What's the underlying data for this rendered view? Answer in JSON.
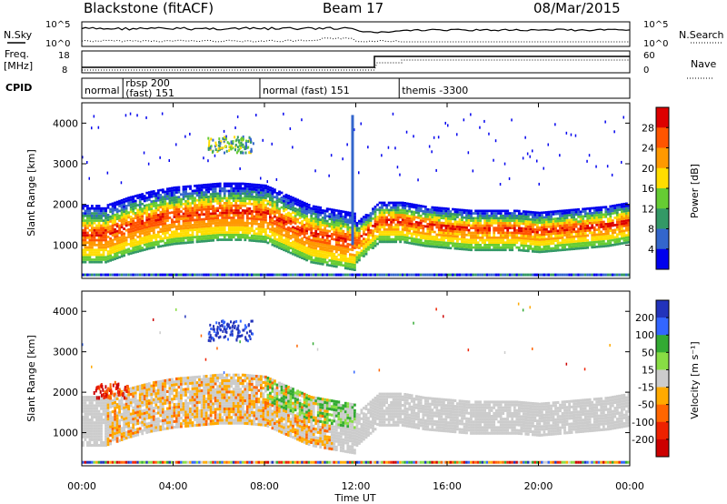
{
  "header": {
    "station": "Blackstone (fitACF)",
    "beam": "Beam 17",
    "date": "08/Mar/2015"
  },
  "noise_panel": {
    "left_label": "N.Sky",
    "right_label": "N.Search",
    "left_ticks": [
      "10^5",
      "10^0"
    ],
    "right_ticks": [
      "10^5",
      "10^0"
    ]
  },
  "freq_panel": {
    "left_label_1": "Freq.",
    "left_label_2": "[MHz]",
    "right_label": "Nave",
    "left_ticks": [
      "18",
      "8"
    ],
    "right_ticks": [
      "60",
      "0"
    ]
  },
  "cpid_panel": {
    "label": "CPID",
    "segments": [
      {
        "start_h": 0.0,
        "end_h": 1.8,
        "lines": [
          "normal"
        ]
      },
      {
        "start_h": 1.8,
        "end_h": 7.8,
        "lines": [
          "rbsp 200",
          "(fast) 151"
        ]
      },
      {
        "start_h": 7.8,
        "end_h": 13.9,
        "lines": [
          "normal (fast) 151"
        ]
      },
      {
        "start_h": 13.9,
        "end_h": 24.0,
        "lines": [
          "themis -3300"
        ]
      }
    ]
  },
  "x_axis": {
    "label": "Time UT",
    "ticks": [
      "00:00",
      "04:00",
      "08:00",
      "12:00",
      "16:00",
      "20:00",
      "00:00"
    ]
  },
  "chart_data": [
    {
      "type": "heatmap",
      "title": "Power",
      "ylabel": "Slant Range [km]",
      "xlabel": "",
      "xlim": [
        0,
        24
      ],
      "ylim": [
        180,
        4500
      ],
      "yticks": [
        1000,
        2000,
        3000,
        4000
      ],
      "colorbar": {
        "label": "Power [dB]",
        "ticks": [
          "28",
          "24",
          "20",
          "16",
          "12",
          "8",
          "4"
        ],
        "colors": [
          "#dd0000",
          "#ff5500",
          "#ff9900",
          "#ffdd00",
          "#66cc33",
          "#339966",
          "#3366cc",
          "#0000ee"
        ]
      },
      "bands": [
        {
          "t": [
            0,
            1,
            2,
            3,
            4,
            5,
            6,
            7,
            8,
            9,
            10,
            11,
            12,
            13,
            14,
            15,
            16,
            17,
            18,
            19,
            20,
            21,
            22,
            23,
            24
          ],
          "center": [
            1250,
            1250,
            1450,
            1600,
            1700,
            1750,
            1800,
            1800,
            1750,
            1500,
            1250,
            1150,
            1050,
            1550,
            1550,
            1450,
            1400,
            1350,
            1350,
            1350,
            1300,
            1350,
            1400,
            1450,
            1550
          ]
        }
      ],
      "features": [
        {
          "name": "upper echo cluster",
          "t": [
            5.5,
            7.5
          ],
          "range": [
            3300,
            3700
          ]
        },
        {
          "name": "near-12UT streak",
          "t": [
            11.8,
            12.1
          ],
          "range": [
            1000,
            4200
          ]
        }
      ]
    },
    {
      "type": "heatmap",
      "title": "Velocity",
      "ylabel": "Slant Range [km]",
      "xlabel": "Time UT",
      "xlim": [
        0,
        24
      ],
      "ylim": [
        180,
        4500
      ],
      "yticks": [
        1000,
        2000,
        3000,
        4000
      ],
      "colorbar": {
        "label": "Velocity [m s⁻¹]",
        "ticks": [
          "200",
          "100",
          "50",
          "15",
          "-15",
          "-50",
          "-100",
          "-200"
        ],
        "colors": [
          "#2233bb",
          "#3366ff",
          "#33aa33",
          "#88dd44",
          "#cccccc",
          "#ffaa00",
          "#ff6600",
          "#ee2200",
          "#cc0000"
        ]
      },
      "features": [
        {
          "name": "ground scatter band",
          "t": [
            0,
            24
          ],
          "range": [
            1200,
            2000
          ],
          "velocity": "-15 to 15"
        },
        {
          "name": "negative velocity region",
          "t": [
            1,
            11
          ],
          "range": [
            1000,
            2200
          ],
          "velocity": "-50"
        },
        {
          "name": "positive velocity region",
          "t": [
            8,
            12
          ],
          "range": [
            1200,
            2200
          ],
          "velocity": "50"
        },
        {
          "name": "upper positive cluster",
          "t": [
            5.5,
            7.5
          ],
          "range": [
            3300,
            3800
          ],
          "velocity": "200"
        }
      ]
    }
  ]
}
